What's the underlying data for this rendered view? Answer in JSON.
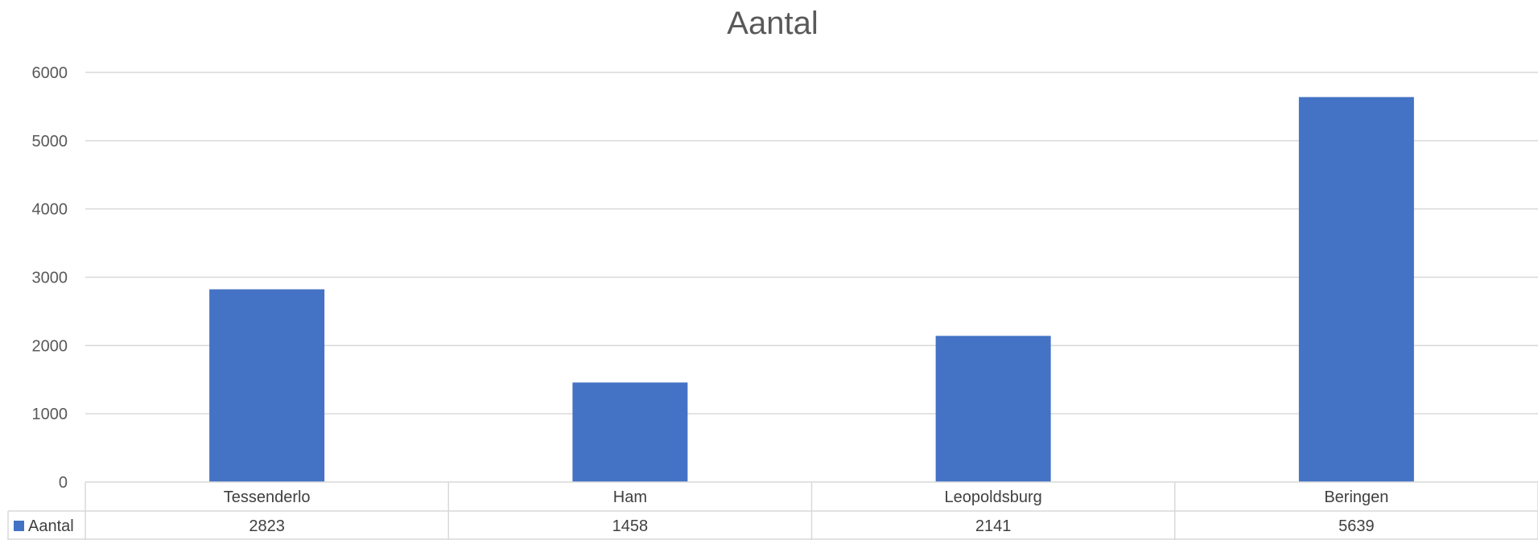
{
  "chart_data": {
    "type": "bar",
    "title": "Aantal",
    "xlabel": "",
    "ylabel": "",
    "categories": [
      "Tessenderlo",
      "Ham",
      "Leopoldsburg",
      "Beringen"
    ],
    "series": [
      {
        "name": "Aantal",
        "values": [
          2823,
          1458,
          2141,
          5639
        ],
        "color": "#4472c4"
      }
    ],
    "ylim": [
      0,
      6000
    ],
    "yticks": [
      0,
      1000,
      2000,
      3000,
      4000,
      5000,
      6000
    ],
    "grid": true,
    "legend": "data-table-left",
    "data_table": true
  }
}
